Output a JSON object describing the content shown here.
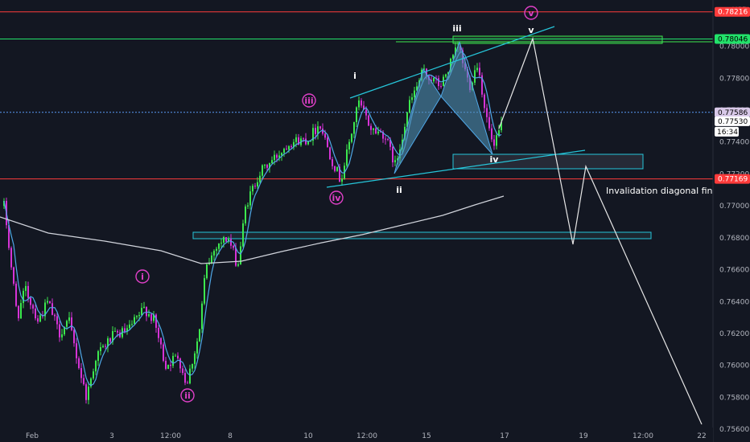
{
  "chart_data": {
    "type": "candlestick",
    "currency": "USD",
    "x_ticks": [
      "Feb",
      "3",
      "12:00",
      "8",
      "10",
      "12:00",
      "15",
      "17",
      "19",
      "12:00",
      "22"
    ],
    "y_ticks": [
      "0.75600",
      "0.75800",
      "0.76000",
      "0.76200",
      "0.76400",
      "0.76600",
      "0.76800",
      "0.77000",
      "0.77200",
      "0.77400",
      "0.77600",
      "0.77800",
      "0.78000"
    ],
    "ylim": [
      0.7552,
      0.7829
    ],
    "price_tags": [
      {
        "value": 0.78216,
        "label": "0.78216",
        "color": "#ff3b3b",
        "text_color": "#ffffff"
      },
      {
        "value": 0.78046,
        "label": "0.78046",
        "color": "#22e26a",
        "text_color": "#000000"
      },
      {
        "value": 0.77586,
        "label": "0.77586",
        "color": "#d8c8e8",
        "text_color": "#000000"
      },
      {
        "value": 0.7753,
        "label": "0.77530",
        "color": "#ffffff",
        "text_color": "#000000"
      },
      {
        "value": 0.77169,
        "label": "0.77169",
        "color": "#ff3b3b",
        "text_color": "#ffffff"
      }
    ],
    "countdown": "16:34",
    "horizontal_lines": [
      {
        "value": 0.78216,
        "color": "#ff3b3b",
        "style": "solid"
      },
      {
        "value": 0.78046,
        "color": "#22e26a",
        "style": "solid"
      },
      {
        "value": 0.77586,
        "color": "#5b9cf6",
        "style": "dotted"
      },
      {
        "value": 0.77169,
        "color": "#ff3b3b",
        "style": "solid"
      }
    ],
    "wave_labels": [
      {
        "text": "i",
        "circled": true,
        "color": "#e040c8"
      },
      {
        "text": "ii",
        "circled": true,
        "color": "#e040c8"
      },
      {
        "text": "iii",
        "circled": true,
        "color": "#e040c8"
      },
      {
        "text": "iv",
        "circled": true,
        "color": "#e040c8"
      },
      {
        "text": "v",
        "circled": true,
        "color": "#e040c8"
      },
      {
        "text": "i",
        "circled": false,
        "color": "#ffffff"
      },
      {
        "text": "ii",
        "circled": false,
        "color": "#ffffff"
      },
      {
        "text": "iii",
        "circled": false,
        "color": "#ffffff"
      },
      {
        "text": "iv",
        "circled": false,
        "color": "#ffffff"
      },
      {
        "text": "v",
        "circled": false,
        "color": "#ffffff"
      }
    ],
    "annotation": "Invalidation diagonal final",
    "colors": {
      "background": "#131722",
      "up_candle": "#3ce84e",
      "down_candle": "#d633d6",
      "fast_ma": "#4fa8e8",
      "slow_ma": "#d1d4dc",
      "zone_border": "#26c6da",
      "zone_fill": "#2a2e39",
      "harmonic_fill": "#4f8fb3",
      "forecast_line": "#e6e6e6",
      "axis_text": "#b2b5be"
    }
  }
}
